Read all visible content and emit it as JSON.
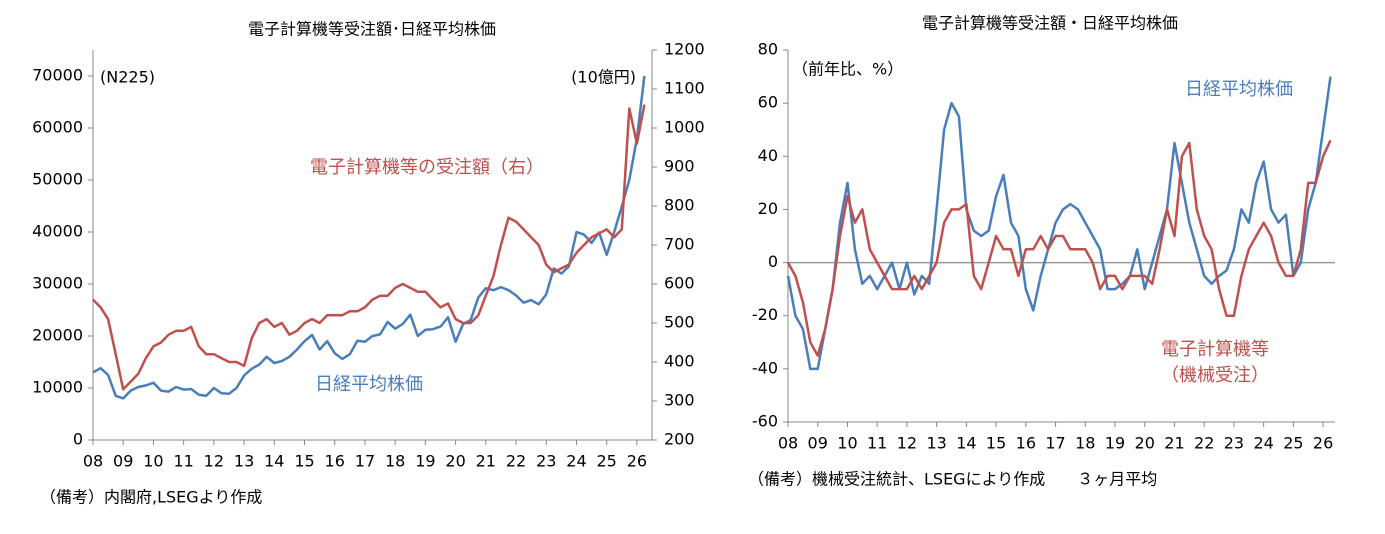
{
  "chart_data": [
    {
      "type": "line",
      "title": "電子計算機等受注額･日経平均株価",
      "ylabel": "(N225)",
      "y2label": "(10億円)",
      "note": "（備考）内閣府,LSEGより作成",
      "xlim": [
        2008,
        2026.5
      ],
      "ylim": [
        0,
        75000
      ],
      "y2lim": [
        200,
        1200
      ],
      "xticks": [
        {
          "value": 2008,
          "label": "08"
        },
        {
          "value": 2009,
          "label": "09"
        },
        {
          "value": 2010,
          "label": "10"
        },
        {
          "value": 2011,
          "label": "11"
        },
        {
          "value": 2012,
          "label": "12"
        },
        {
          "value": 2013,
          "label": "13"
        },
        {
          "value": 2014,
          "label": "14"
        },
        {
          "value": 2015,
          "label": "15"
        },
        {
          "value": 2016,
          "label": "16"
        },
        {
          "value": 2017,
          "label": "17"
        },
        {
          "value": 2018,
          "label": "18"
        },
        {
          "value": 2019,
          "label": "19"
        },
        {
          "value": 2020,
          "label": "20"
        },
        {
          "value": 2021,
          "label": "21"
        },
        {
          "value": 2022,
          "label": "22"
        },
        {
          "value": 2023,
          "label": "23"
        },
        {
          "value": 2024,
          "label": "24"
        },
        {
          "value": 2025,
          "label": "25"
        },
        {
          "value": 2026,
          "label": "26"
        }
      ],
      "yticks": [
        0,
        10000,
        20000,
        30000,
        40000,
        50000,
        60000,
        70000
      ],
      "y2ticks": [
        200,
        300,
        400,
        500,
        600,
        700,
        800,
        900,
        1000,
        1100,
        1200
      ],
      "x": [
        2008,
        2008.25,
        2008.5,
        2008.75,
        2009,
        2009.25,
        2009.5,
        2009.75,
        2010,
        2010.25,
        2010.5,
        2010.75,
        2011,
        2011.25,
        2011.5,
        2011.75,
        2012,
        2012.25,
        2012.5,
        2012.75,
        2013,
        2013.25,
        2013.5,
        2013.75,
        2014,
        2014.25,
        2014.5,
        2014.75,
        2015,
        2015.25,
        2015.5,
        2015.75,
        2016,
        2016.25,
        2016.5,
        2016.75,
        2017,
        2017.25,
        2017.5,
        2017.75,
        2018,
        2018.25,
        2018.5,
        2018.75,
        2019,
        2019.25,
        2019.5,
        2019.75,
        2020,
        2020.25,
        2020.5,
        2020.75,
        2021,
        2021.25,
        2021.5,
        2021.75,
        2022,
        2022.25,
        2022.5,
        2022.75,
        2023,
        2023.25,
        2023.5,
        2023.75,
        2024,
        2024.25,
        2024.5,
        2024.75,
        2025,
        2025.25,
        2025.5,
        2025.75,
        2026,
        2026.25
      ],
      "series": [
        {
          "name": "日経平均株価",
          "color": "#4a7ebb",
          "axis": "y",
          "values": [
            13000,
            13800,
            12500,
            8500,
            8000,
            9500,
            10200,
            10500,
            11000,
            9500,
            9300,
            10200,
            9700,
            9800,
            8700,
            8500,
            10000,
            9000,
            8900,
            10000,
            12400,
            13700,
            14500,
            16000,
            14800,
            15200,
            16000,
            17400,
            19000,
            20200,
            17400,
            19000,
            16700,
            15600,
            16500,
            19100,
            18900,
            20000,
            20300,
            22700,
            21400,
            22300,
            24100,
            20000,
            21200,
            21300,
            21800,
            23600,
            18900,
            22300,
            23100,
            27400,
            29200,
            28800,
            29400,
            28800,
            27800,
            26400,
            26900,
            26100,
            28000,
            33000,
            32000,
            33400,
            40000,
            39500,
            37900,
            39900,
            35600,
            40000,
            44900,
            50000,
            58000,
            70000
          ]
        },
        {
          "name": "電子計算機等の受注額（右）",
          "color": "#c0504d",
          "axis": "y2",
          "values": [
            560,
            540,
            510,
            420,
            330,
            350,
            370,
            410,
            440,
            450,
            470,
            480,
            480,
            490,
            440,
            420,
            420,
            410,
            400,
            400,
            390,
            460,
            500,
            510,
            490,
            500,
            470,
            480,
            500,
            510,
            500,
            520,
            520,
            520,
            530,
            530,
            540,
            560,
            570,
            570,
            590,
            600,
            590,
            580,
            580,
            560,
            540,
            550,
            510,
            500,
            500,
            520,
            570,
            620,
            700,
            770,
            760,
            740,
            720,
            700,
            650,
            630,
            640,
            650,
            680,
            700,
            720,
            730,
            740,
            720,
            740,
            1050,
            960,
            1060
          ]
        }
      ]
    },
    {
      "type": "line",
      "title": "電子計算機等受注額・日経平均株価",
      "ylabel": "（前年比、%）",
      "note": "（備考）機械受注統計、LSEGにより作成　　３ヶ月平均",
      "zero_line": true,
      "xlim": [
        2008,
        2026.4
      ],
      "ylim": [
        -60,
        80
      ],
      "xticks": [
        {
          "value": 2008,
          "label": "08"
        },
        {
          "value": 2009,
          "label": "09"
        },
        {
          "value": 2010,
          "label": "10"
        },
        {
          "value": 2011,
          "label": "11"
        },
        {
          "value": 2012,
          "label": "12"
        },
        {
          "value": 2013,
          "label": "13"
        },
        {
          "value": 2014,
          "label": "14"
        },
        {
          "value": 2015,
          "label": "15"
        },
        {
          "value": 2016,
          "label": "16"
        },
        {
          "value": 2017,
          "label": "17"
        },
        {
          "value": 2018,
          "label": "18"
        },
        {
          "value": 2019,
          "label": "19"
        },
        {
          "value": 2020,
          "label": "20"
        },
        {
          "value": 2021,
          "label": "21"
        },
        {
          "value": 2022,
          "label": "22"
        },
        {
          "value": 2023,
          "label": "23"
        },
        {
          "value": 2024,
          "label": "24"
        },
        {
          "value": 2025,
          "label": "25"
        },
        {
          "value": 2026,
          "label": "26"
        }
      ],
      "yticks": [
        -60,
        -40,
        -20,
        0,
        20,
        40,
        60,
        80
      ],
      "x": [
        2008,
        2008.25,
        2008.5,
        2008.75,
        2009,
        2009.25,
        2009.5,
        2009.75,
        2010,
        2010.25,
        2010.5,
        2010.75,
        2011,
        2011.25,
        2011.5,
        2011.75,
        2012,
        2012.25,
        2012.5,
        2012.75,
        2013,
        2013.25,
        2013.5,
        2013.75,
        2014,
        2014.25,
        2014.5,
        2014.75,
        2015,
        2015.25,
        2015.5,
        2015.75,
        2016,
        2016.25,
        2016.5,
        2016.75,
        2017,
        2017.25,
        2017.5,
        2017.75,
        2018,
        2018.25,
        2018.5,
        2018.75,
        2019,
        2019.25,
        2019.5,
        2019.75,
        2020,
        2020.25,
        2020.5,
        2020.75,
        2021,
        2021.25,
        2021.5,
        2021.75,
        2022,
        2022.25,
        2022.5,
        2022.75,
        2023,
        2023.25,
        2023.5,
        2023.75,
        2024,
        2024.25,
        2024.5,
        2024.75,
        2025,
        2025.25,
        2025.5,
        2025.75,
        2026,
        2026.25
      ],
      "series": [
        {
          "name": "日経平均株価",
          "color": "#4a7ebb",
          "values": [
            -5,
            -20,
            -25,
            -40,
            -40,
            -25,
            -10,
            15,
            30,
            5,
            -8,
            -5,
            -10,
            -5,
            0,
            -10,
            0,
            -12,
            -5,
            -8,
            20,
            50,
            60,
            55,
            20,
            12,
            10,
            12,
            25,
            33,
            15,
            10,
            -10,
            -18,
            -5,
            5,
            15,
            20,
            22,
            20,
            15,
            10,
            5,
            -10,
            -10,
            -8,
            -5,
            5,
            -10,
            0,
            10,
            20,
            45,
            30,
            15,
            5,
            -5,
            -8,
            -5,
            -3,
            5,
            20,
            15,
            30,
            38,
            20,
            15,
            18,
            -5,
            0,
            20,
            30,
            50,
            70
          ]
        },
        {
          "name": "電子計算機等",
          "name_note": "（機械受注）",
          "color": "#c0504d",
          "values": [
            0,
            -5,
            -15,
            -30,
            -35,
            -25,
            -10,
            10,
            25,
            15,
            20,
            5,
            0,
            -5,
            -10,
            -10,
            -10,
            -5,
            -10,
            -5,
            0,
            15,
            20,
            20,
            22,
            -5,
            -10,
            0,
            10,
            5,
            5,
            -5,
            5,
            5,
            10,
            5,
            10,
            10,
            5,
            5,
            5,
            0,
            -10,
            -5,
            -5,
            -10,
            -5,
            -5,
            -5,
            -8,
            5,
            20,
            10,
            40,
            45,
            20,
            10,
            5,
            -10,
            -20,
            -20,
            -5,
            5,
            10,
            15,
            10,
            0,
            -5,
            -5,
            5,
            30,
            30,
            40,
            46
          ]
        }
      ]
    }
  ]
}
